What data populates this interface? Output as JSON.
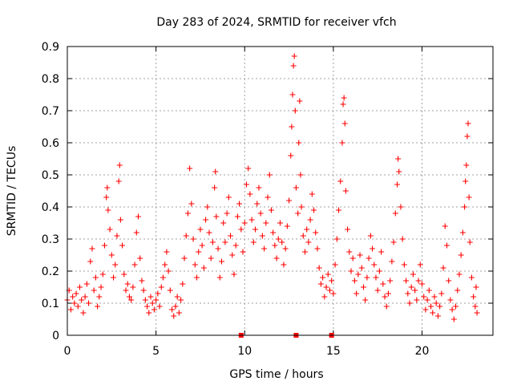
{
  "chart_data": {
    "type": "scatter",
    "title": "Day 283 of 2024, SRMTID for receiver vfch",
    "xlabel": "GPS time / hours",
    "ylabel": "SRMTID / TECUs",
    "xlim": [
      0,
      24
    ],
    "ylim": [
      0,
      0.9
    ],
    "x_ticks": [
      0,
      5,
      10,
      15,
      20
    ],
    "x_tick_labels": [
      "0",
      "5",
      "10",
      "15",
      "20"
    ],
    "y_ticks": [
      0,
      0.1,
      0.2,
      0.3,
      0.4,
      0.5,
      0.6,
      0.7,
      0.8,
      0.9
    ],
    "y_tick_labels": [
      "0",
      "0.1",
      "0.2",
      "0.3",
      "0.4",
      "0.5",
      "0.6",
      "0.7",
      "0.8",
      "0.9"
    ],
    "grid": true,
    "marker": "plus",
    "color": "#ff0000",
    "series": [
      {
        "name": "SRMTID",
        "points": [
          [
            0.0,
            0.11
          ],
          [
            0.1,
            0.14
          ],
          [
            0.2,
            0.08
          ],
          [
            0.3,
            0.12
          ],
          [
            0.4,
            0.1
          ],
          [
            0.5,
            0.13
          ],
          [
            0.6,
            0.09
          ],
          [
            0.7,
            0.15
          ],
          [
            0.8,
            0.11
          ],
          [
            0.9,
            0.07
          ],
          [
            1.0,
            0.12
          ],
          [
            1.1,
            0.16
          ],
          [
            1.2,
            0.1
          ],
          [
            1.3,
            0.23
          ],
          [
            1.4,
            0.27
          ],
          [
            1.5,
            0.14
          ],
          [
            1.6,
            0.18
          ],
          [
            1.7,
            0.09
          ],
          [
            1.8,
            0.12
          ],
          [
            1.9,
            0.15
          ],
          [
            2.0,
            0.19
          ],
          [
            2.1,
            0.28
          ],
          [
            2.2,
            0.43
          ],
          [
            2.25,
            0.46
          ],
          [
            2.3,
            0.39
          ],
          [
            2.4,
            0.33
          ],
          [
            2.5,
            0.25
          ],
          [
            2.6,
            0.18
          ],
          [
            2.7,
            0.22
          ],
          [
            2.8,
            0.31
          ],
          [
            2.9,
            0.48
          ],
          [
            2.95,
            0.53
          ],
          [
            3.0,
            0.36
          ],
          [
            3.1,
            0.28
          ],
          [
            3.2,
            0.19
          ],
          [
            3.3,
            0.14
          ],
          [
            3.4,
            0.16
          ],
          [
            3.5,
            0.12
          ],
          [
            3.6,
            0.11
          ],
          [
            3.7,
            0.15
          ],
          [
            3.8,
            0.22
          ],
          [
            3.9,
            0.32
          ],
          [
            4.0,
            0.37
          ],
          [
            4.1,
            0.24
          ],
          [
            4.2,
            0.17
          ],
          [
            4.3,
            0.14
          ],
          [
            4.4,
            0.11
          ],
          [
            4.5,
            0.09
          ],
          [
            4.6,
            0.07
          ],
          [
            4.7,
            0.12
          ],
          [
            4.8,
            0.1
          ],
          [
            4.9,
            0.08
          ],
          [
            5.0,
            0.11
          ],
          [
            5.1,
            0.13
          ],
          [
            5.2,
            0.09
          ],
          [
            5.3,
            0.15
          ],
          [
            5.4,
            0.18
          ],
          [
            5.5,
            0.22
          ],
          [
            5.6,
            0.26
          ],
          [
            5.7,
            0.2
          ],
          [
            5.8,
            0.14
          ],
          [
            5.9,
            0.08
          ],
          [
            6.0,
            0.06
          ],
          [
            6.1,
            0.09
          ],
          [
            6.2,
            0.12
          ],
          [
            6.3,
            0.07
          ],
          [
            6.4,
            0.11
          ],
          [
            6.5,
            0.16
          ],
          [
            6.6,
            0.24
          ],
          [
            6.7,
            0.31
          ],
          [
            6.8,
            0.38
          ],
          [
            6.9,
            0.52
          ],
          [
            7.0,
            0.41
          ],
          [
            7.1,
            0.3
          ],
          [
            7.2,
            0.22
          ],
          [
            7.3,
            0.18
          ],
          [
            7.4,
            0.26
          ],
          [
            7.5,
            0.33
          ],
          [
            7.6,
            0.28
          ],
          [
            7.7,
            0.21
          ],
          [
            7.8,
            0.36
          ],
          [
            7.9,
            0.4
          ],
          [
            8.0,
            0.32
          ],
          [
            8.1,
            0.24
          ],
          [
            8.2,
            0.29
          ],
          [
            8.3,
            0.46
          ],
          [
            8.35,
            0.51
          ],
          [
            8.4,
            0.37
          ],
          [
            8.5,
            0.27
          ],
          [
            8.6,
            0.18
          ],
          [
            8.7,
            0.23
          ],
          [
            8.8,
            0.35
          ],
          [
            8.9,
            0.29
          ],
          [
            9.0,
            0.38
          ],
          [
            9.1,
            0.43
          ],
          [
            9.2,
            0.31
          ],
          [
            9.3,
            0.25
          ],
          [
            9.4,
            0.19
          ],
          [
            9.5,
            0.28
          ],
          [
            9.6,
            0.37
          ],
          [
            9.7,
            0.41
          ],
          [
            9.8,
            0.33
          ],
          [
            9.9,
            0.26
          ],
          [
            10.0,
            0.35
          ],
          [
            10.1,
            0.47
          ],
          [
            10.2,
            0.52
          ],
          [
            10.3,
            0.44
          ],
          [
            10.4,
            0.36
          ],
          [
            10.5,
            0.29
          ],
          [
            10.6,
            0.33
          ],
          [
            10.7,
            0.41
          ],
          [
            10.8,
            0.46
          ],
          [
            10.9,
            0.38
          ],
          [
            11.0,
            0.31
          ],
          [
            11.1,
            0.27
          ],
          [
            11.2,
            0.35
          ],
          [
            11.3,
            0.43
          ],
          [
            11.4,
            0.5
          ],
          [
            11.5,
            0.39
          ],
          [
            11.6,
            0.32
          ],
          [
            11.7,
            0.28
          ],
          [
            11.8,
            0.24
          ],
          [
            11.9,
            0.3
          ],
          [
            12.0,
            0.35
          ],
          [
            12.1,
            0.29
          ],
          [
            12.2,
            0.22
          ],
          [
            12.3,
            0.27
          ],
          [
            12.4,
            0.34
          ],
          [
            12.5,
            0.42
          ],
          [
            12.6,
            0.56
          ],
          [
            12.65,
            0.65
          ],
          [
            12.7,
            0.75
          ],
          [
            12.75,
            0.84
          ],
          [
            12.8,
            0.87
          ],
          [
            12.85,
            0.7
          ],
          [
            12.9,
            0.46
          ],
          [
            13.0,
            0.38
          ],
          [
            13.05,
            0.6
          ],
          [
            13.1,
            0.73
          ],
          [
            13.15,
            0.5
          ],
          [
            13.2,
            0.4
          ],
          [
            13.3,
            0.31
          ],
          [
            13.4,
            0.26
          ],
          [
            13.5,
            0.33
          ],
          [
            13.6,
            0.29
          ],
          [
            13.7,
            0.36
          ],
          [
            13.8,
            0.44
          ],
          [
            13.9,
            0.39
          ],
          [
            14.0,
            0.32
          ],
          [
            14.1,
            0.27
          ],
          [
            14.2,
            0.21
          ],
          [
            14.3,
            0.16
          ],
          [
            14.4,
            0.18
          ],
          [
            14.5,
            0.12
          ],
          [
            14.6,
            0.15
          ],
          [
            14.7,
            0.19
          ],
          [
            14.8,
            0.14
          ],
          [
            14.9,
            0.17
          ],
          [
            15.0,
            0.13
          ],
          [
            15.1,
            0.22
          ],
          [
            15.2,
            0.3
          ],
          [
            15.3,
            0.39
          ],
          [
            15.4,
            0.48
          ],
          [
            15.5,
            0.6
          ],
          [
            15.55,
            0.72
          ],
          [
            15.6,
            0.74
          ],
          [
            15.65,
            0.66
          ],
          [
            15.7,
            0.45
          ],
          [
            15.8,
            0.33
          ],
          [
            15.9,
            0.26
          ],
          [
            16.0,
            0.2
          ],
          [
            16.1,
            0.24
          ],
          [
            16.2,
            0.17
          ],
          [
            16.3,
            0.13
          ],
          [
            16.4,
            0.19
          ],
          [
            16.5,
            0.25
          ],
          [
            16.6,
            0.21
          ],
          [
            16.7,
            0.15
          ],
          [
            16.8,
            0.11
          ],
          [
            16.9,
            0.18
          ],
          [
            17.0,
            0.24
          ],
          [
            17.1,
            0.31
          ],
          [
            17.2,
            0.27
          ],
          [
            17.3,
            0.22
          ],
          [
            17.4,
            0.18
          ],
          [
            17.5,
            0.14
          ],
          [
            17.6,
            0.2
          ],
          [
            17.7,
            0.26
          ],
          [
            17.8,
            0.16
          ],
          [
            17.9,
            0.12
          ],
          [
            18.0,
            0.09
          ],
          [
            18.1,
            0.13
          ],
          [
            18.2,
            0.17
          ],
          [
            18.3,
            0.23
          ],
          [
            18.4,
            0.29
          ],
          [
            18.5,
            0.38
          ],
          [
            18.6,
            0.47
          ],
          [
            18.65,
            0.55
          ],
          [
            18.7,
            0.51
          ],
          [
            18.8,
            0.4
          ],
          [
            18.9,
            0.3
          ],
          [
            19.0,
            0.22
          ],
          [
            19.1,
            0.17
          ],
          [
            19.2,
            0.13
          ],
          [
            19.3,
            0.1
          ],
          [
            19.4,
            0.15
          ],
          [
            19.5,
            0.19
          ],
          [
            19.6,
            0.14
          ],
          [
            19.7,
            0.11
          ],
          [
            19.8,
            0.17
          ],
          [
            19.9,
            0.22
          ],
          [
            20.0,
            0.16
          ],
          [
            20.1,
            0.12
          ],
          [
            20.2,
            0.08
          ],
          [
            20.3,
            0.11
          ],
          [
            20.4,
            0.14
          ],
          [
            20.5,
            0.09
          ],
          [
            20.6,
            0.07
          ],
          [
            20.7,
            0.12
          ],
          [
            20.8,
            0.1
          ],
          [
            20.9,
            0.06
          ],
          [
            21.0,
            0.09
          ],
          [
            21.1,
            0.13
          ],
          [
            21.2,
            0.21
          ],
          [
            21.3,
            0.34
          ],
          [
            21.4,
            0.28
          ],
          [
            21.5,
            0.17
          ],
          [
            21.6,
            0.11
          ],
          [
            21.7,
            0.08
          ],
          [
            21.8,
            0.05
          ],
          [
            21.9,
            0.09
          ],
          [
            22.0,
            0.14
          ],
          [
            22.1,
            0.19
          ],
          [
            22.2,
            0.25
          ],
          [
            22.3,
            0.32
          ],
          [
            22.4,
            0.4
          ],
          [
            22.45,
            0.48
          ],
          [
            22.5,
            0.53
          ],
          [
            22.55,
            0.62
          ],
          [
            22.6,
            0.66
          ],
          [
            22.65,
            0.43
          ],
          [
            22.7,
            0.29
          ],
          [
            22.8,
            0.18
          ],
          [
            22.9,
            0.12
          ],
          [
            23.0,
            0.09
          ],
          [
            23.05,
            0.15
          ],
          [
            23.1,
            0.07
          ]
        ]
      }
    ],
    "baseline_markers_x": [
      9.8,
      12.9,
      14.9
    ]
  }
}
